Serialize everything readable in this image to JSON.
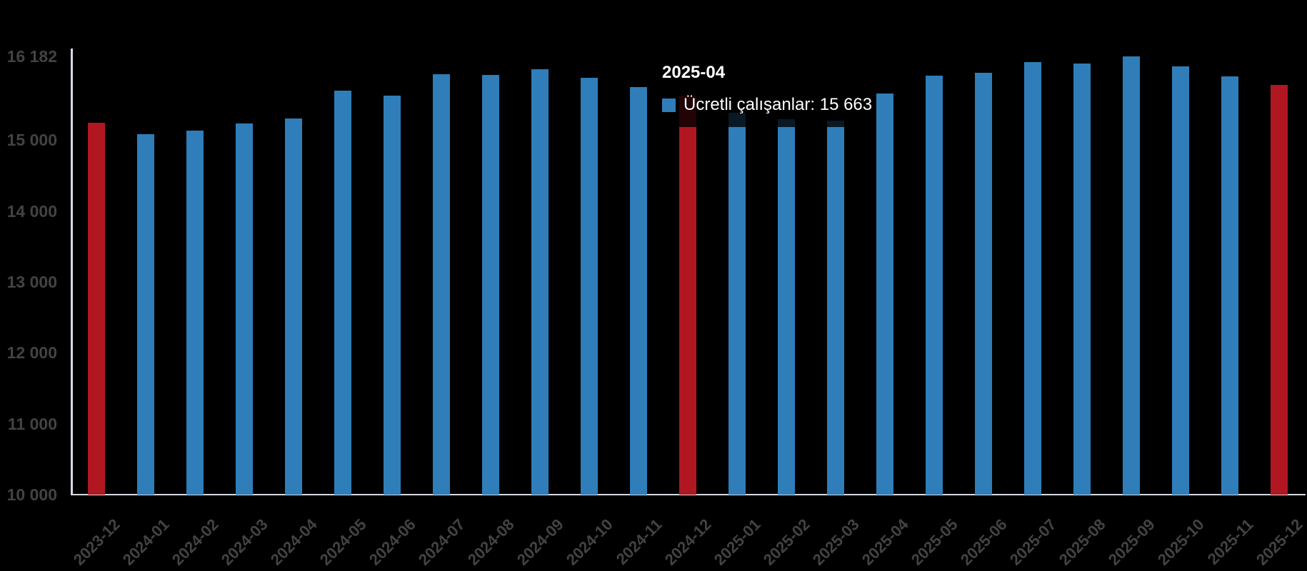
{
  "chart_data": {
    "type": "bar",
    "title": "",
    "xlabel": "",
    "ylabel": "",
    "categories": [
      "2023-12",
      "2024-01",
      "2024-02",
      "2024-03",
      "2024-04",
      "2024-05",
      "2024-06",
      "2024-07",
      "2024-08",
      "2024-09",
      "2024-10",
      "2024-11",
      "2024-12",
      "2025-01",
      "2025-02",
      "2025-03",
      "2025-04",
      "2025-05",
      "2025-06",
      "2025-07",
      "2025-08",
      "2025-09",
      "2025-10",
      "2025-11",
      "2025-12"
    ],
    "series": [
      {
        "name": "Ücretli çalışanlar",
        "values": [
          15250,
          15080,
          15130,
          15235,
          15305,
          15700,
          15625,
          15935,
          15925,
          16005,
          15875,
          15750,
          15625,
          15385,
          15295,
          15280,
          15663,
          15910,
          15955,
          16100,
          16085,
          16182,
          16040,
          15900,
          15780
        ]
      }
    ],
    "ylim": [
      10000,
      16182
    ],
    "yticks": [
      10000,
      11000,
      12000,
      13000,
      14000,
      15000,
      16182
    ],
    "ytick_labels": [
      "10 000",
      "11 000",
      "12 000",
      "13 000",
      "14 000",
      "15 000",
      "16 182"
    ],
    "grid": false,
    "legend_position": "none",
    "highlighted_categories": [
      "2023-12",
      "2024-12",
      "2025-12"
    ],
    "colors": {
      "default": "#2f7eb9",
      "highlight": "#b11721",
      "background": "#000000",
      "axis_line": "#d7dae3",
      "axis_text": "#434343"
    }
  },
  "tooltip": {
    "title": "2025-04",
    "series_label": "Ücretli çalışanlar",
    "value": "15 663",
    "text": "Ücretli çalışanlar: 15 663",
    "swatch_color": "#2f7eb9"
  }
}
